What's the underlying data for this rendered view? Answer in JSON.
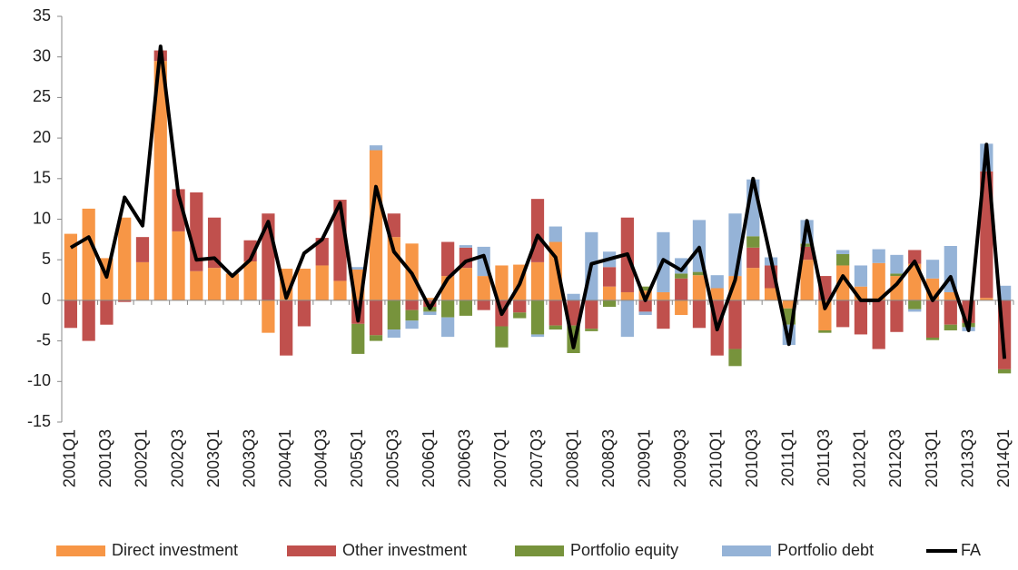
{
  "chart_data": {
    "type": "bar",
    "stacked": true,
    "categories": [
      "2001Q1",
      null,
      "2001Q3",
      null,
      "2002Q1",
      null,
      "2002Q3",
      null,
      "2003Q1",
      null,
      "2003Q3",
      null,
      "2004Q1",
      null,
      "2004Q3",
      null,
      "2005Q1",
      null,
      "2005Q3",
      null,
      "2006Q1",
      null,
      "2006Q3",
      null,
      "2007Q1",
      null,
      "2007Q3",
      null,
      "2008Q1",
      null,
      "2008Q3",
      null,
      "2009Q1",
      null,
      "2009Q3",
      null,
      "2010Q1",
      null,
      "2010Q3",
      null,
      "2011Q1",
      null,
      "2011Q3",
      null,
      "2012Q1",
      null,
      "2012Q3",
      null,
      "2013Q1",
      null,
      "2013Q3",
      null,
      "2014Q1"
    ],
    "series": [
      {
        "name": "Direct investment",
        "type": "bar",
        "color": "#f79646",
        "values": [
          8.2,
          11.3,
          5.2,
          10.2,
          4.7,
          29.5,
          8.5,
          3.6,
          4,
          3.3,
          4.8,
          -4,
          3.9,
          3.9,
          4.3,
          2.4,
          3.8,
          18.5,
          7.8,
          7,
          0.3,
          3,
          4,
          3,
          4.3,
          4.4,
          4.7,
          7.2,
          0,
          0,
          1.7,
          1,
          1.2,
          1,
          -1.8,
          3.1,
          1.5,
          3,
          4,
          1.5,
          -1,
          5,
          -3.7,
          4.3,
          1.7,
          4.6,
          3,
          4.5,
          2.7,
          1,
          0,
          0.3,
          0
        ]
      },
      {
        "name": "Other investment",
        "type": "bar",
        "color": "#c0504d",
        "values": [
          -3.4,
          -5,
          -3,
          -0.2,
          3.1,
          1.3,
          5.2,
          9.7,
          6.2,
          0,
          2.6,
          10.7,
          -6.8,
          -3.2,
          3.4,
          10,
          -2.9,
          -4.3,
          2.9,
          -1.2,
          -0.8,
          4.2,
          2.5,
          -1.2,
          -3.2,
          -1.5,
          7.8,
          -3.1,
          -3.1,
          -3.5,
          2.4,
          9.2,
          -1.4,
          -3.5,
          2.7,
          -3.4,
          -6.8,
          -6,
          2.5,
          2.8,
          0,
          1.6,
          3,
          -3.3,
          -4.2,
          -6,
          -3.9,
          1.7,
          -4.6,
          -3,
          -2.8,
          15.6,
          -8.5
        ]
      },
      {
        "name": "Portfolio equity",
        "type": "bar",
        "color": "#77933c",
        "values": [
          0,
          0,
          0,
          0,
          0,
          0,
          0,
          0,
          0,
          0,
          0,
          0,
          0,
          0,
          0,
          0,
          -3.7,
          -0.7,
          -3.6,
          -1.3,
          -0.6,
          -2.1,
          -1.9,
          0,
          -2.6,
          -0.7,
          -4.2,
          -0.5,
          -3.4,
          -0.3,
          -0.8,
          0,
          0.5,
          0,
          0.6,
          0.4,
          0,
          -2.1,
          1.4,
          0,
          -2,
          0.4,
          -0.3,
          1.4,
          0,
          0,
          0.3,
          -1.1,
          -0.3,
          -0.7,
          -0.5,
          0,
          -0.5
        ]
      },
      {
        "name": "Portfolio debt",
        "type": "bar",
        "color": "#95b3d7",
        "values": [
          0,
          0,
          0,
          0,
          0,
          0,
          0,
          0,
          0,
          0,
          0,
          0,
          0,
          0,
          0,
          0,
          0.3,
          0.6,
          -1,
          -1,
          -0.4,
          -2.4,
          0.3,
          3.6,
          0,
          0,
          -0.3,
          1.9,
          0.8,
          8.4,
          1.9,
          -4.5,
          -0.4,
          7.4,
          1.9,
          6.4,
          1.6,
          7.7,
          7,
          1,
          -2.5,
          2.9,
          0,
          0.5,
          2.6,
          1.7,
          2.3,
          -0.3,
          2.3,
          5.7,
          -0.5,
          3.4,
          1.8
        ]
      },
      {
        "name": "FA",
        "type": "line",
        "color": "#000000",
        "values": [
          6.5,
          7.8,
          2.9,
          12.7,
          9.2,
          31.3,
          13,
          5,
          5.2,
          3,
          5,
          9.7,
          0.3,
          5.8,
          7.5,
          12,
          -2.5,
          14,
          6,
          3.3,
          -1,
          2.7,
          4.8,
          5.5,
          -1.7,
          2,
          8,
          5.3,
          -5.8,
          4.5,
          5.1,
          5.7,
          0,
          5,
          3.7,
          6.5,
          -3.6,
          2.5,
          15,
          5,
          -5.4,
          9.8,
          -1,
          3,
          0,
          0,
          2,
          4.8,
          0,
          2.9,
          -3.7,
          19.2,
          -7.2
        ]
      }
    ],
    "ylim": [
      -15,
      35
    ],
    "yticks": [
      -15,
      -10,
      -5,
      0,
      5,
      10,
      15,
      20,
      25,
      30,
      35
    ],
    "grid": false,
    "legend": "bottom"
  }
}
